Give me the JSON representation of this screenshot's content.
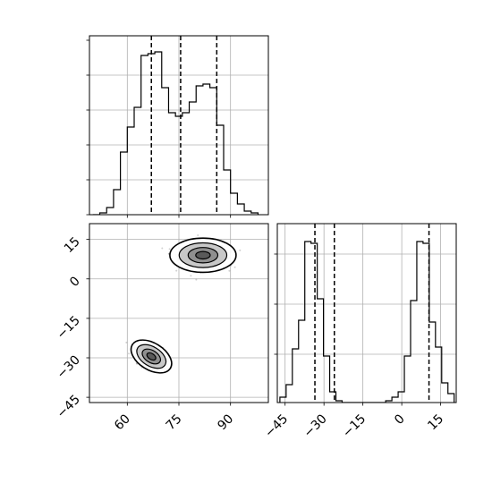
{
  "chart_data": [
    {
      "type": "histogram",
      "panel": "marginal-x",
      "xlim": [
        49,
        101
      ],
      "bin_edges": [
        50,
        52,
        54,
        56,
        58,
        60,
        62,
        64,
        66,
        68,
        70,
        72,
        74,
        76,
        78,
        80,
        82,
        84,
        86,
        88,
        90,
        92,
        94,
        96,
        98
      ],
      "counts": [
        0.0,
        0.01,
        0.04,
        0.14,
        0.35,
        0.49,
        0.6,
        0.89,
        0.9,
        0.91,
        0.71,
        0.57,
        0.55,
        0.57,
        0.63,
        0.72,
        0.73,
        0.71,
        0.5,
        0.25,
        0.12,
        0.06,
        0.02,
        0.01
      ],
      "quantile_lines": [
        67,
        75.5,
        86
      ],
      "grid": true
    },
    {
      "type": "histogram",
      "panel": "marginal-y",
      "xlim": [
        -48,
        21
      ],
      "xticks": [
        "−45",
        "−30",
        "−15",
        "0",
        "15"
      ],
      "bin_edges": [
        -47,
        -44.6,
        -42.2,
        -39.8,
        -37.4,
        -35,
        -32.6,
        -30.2,
        -27.8,
        -25.4,
        -23,
        -20.6,
        -18.2,
        -15.8,
        -13.4,
        -11,
        -8.6,
        -6.2,
        -3.8,
        -1.4,
        1,
        3.4,
        5.8,
        8.2,
        10.6,
        13,
        15.4,
        17.8,
        20.2
      ],
      "counts": [
        0.03,
        0.1,
        0.3,
        0.46,
        0.9,
        0.89,
        0.58,
        0.26,
        0.06,
        0.01,
        0,
        0,
        0,
        0,
        0,
        0,
        0,
        0.01,
        0.03,
        0.06,
        0.26,
        0.57,
        0.9,
        0.89,
        0.45,
        0.31,
        0.11,
        0.05
      ],
      "quantile_lines": [
        -33.5,
        -26,
        10.5
      ],
      "grid": true
    },
    {
      "type": "scatter-contour",
      "panel": "joint",
      "xlim": [
        49,
        101
      ],
      "ylim": [
        -47,
        21
      ],
      "xticks": [
        "60",
        "75",
        "90"
      ],
      "yticks": [
        "−45",
        "−30",
        "−15",
        "0",
        "15"
      ],
      "clusters": [
        {
          "center": [
            82,
            9
          ],
          "spread": [
            6.2,
            4.2
          ]
        },
        {
          "center": [
            67,
            -29.5
          ],
          "spread": [
            4.2,
            3.3
          ],
          "rotation_deg": 32
        }
      ],
      "grid": true
    }
  ]
}
